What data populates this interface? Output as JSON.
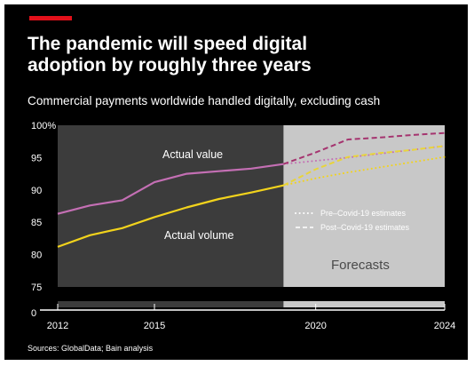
{
  "title_lines": [
    "The pandemic will speed digital",
    "adoption by roughly three years"
  ],
  "subtitle": "Commercial payments worldwide handled digitally, excluding cash",
  "source": "Sources: GlobalData; Bain analysis",
  "colors": {
    "accent": "#e3101a",
    "value": "#c46fb4",
    "value_post": "#a5346f",
    "volume": "#f2d31c",
    "volume_post": "#e8d43a",
    "historic_panel": "#3c3c3c",
    "forecast_panel": "#c8c8c8"
  },
  "chart_data": {
    "type": "line",
    "ylim": [
      75,
      100
    ],
    "yticks": [
      75,
      80,
      85,
      90,
      95,
      100
    ],
    "ytick_labels": [
      "75",
      "80",
      "85",
      "90",
      "95",
      "100%"
    ],
    "zero_label": "0",
    "xlim": [
      2012,
      2024
    ],
    "xticks": [
      2012,
      2015,
      2020,
      2024
    ],
    "xtick_labels": [
      "2012",
      "2015",
      "2020",
      "2024"
    ],
    "forecast_start": 2019,
    "forecast_label": "Forecasts",
    "grid": false,
    "legend_position": "right",
    "legend": [
      "Pre–Covid-19 estimates",
      "Post–Covid-19 estimates"
    ],
    "annotations": [
      "Actual value",
      "Actual volume"
    ],
    "series": [
      {
        "id": "actual-value",
        "name": "Actual value",
        "style": "solid",
        "color": "value",
        "x": [
          2012,
          2013,
          2014,
          2015,
          2016,
          2017,
          2018,
          2019
        ],
        "y": [
          86.3,
          87.6,
          88.4,
          91.2,
          92.5,
          92.9,
          93.3,
          94.0
        ]
      },
      {
        "id": "actual-volume",
        "name": "Actual volume",
        "style": "solid",
        "color": "volume",
        "x": [
          2012,
          2013,
          2014,
          2015,
          2016,
          2017,
          2018,
          2019
        ],
        "y": [
          81.2,
          83.0,
          84.1,
          85.8,
          87.3,
          88.6,
          89.6,
          90.7
        ]
      },
      {
        "id": "value-pre-covid",
        "name": "Pre–Covid-19 estimates",
        "style": "dotted",
        "color": "value",
        "x": [
          2019,
          2020,
          2021,
          2022,
          2023,
          2024
        ],
        "y": [
          94.0,
          94.5,
          95.0,
          95.6,
          96.2,
          96.8
        ]
      },
      {
        "id": "value-post-covid",
        "name": "Post–Covid-19 estimates",
        "style": "dashed",
        "color": "value_post",
        "x": [
          2019,
          2020,
          2021,
          2022,
          2023,
          2024
        ],
        "y": [
          94.0,
          95.8,
          97.8,
          98.1,
          98.5,
          98.8
        ]
      },
      {
        "id": "volume-pre-covid",
        "name": "Pre–Covid-19 estimates",
        "style": "dotted",
        "color": "volume",
        "x": [
          2019,
          2020,
          2021,
          2022,
          2023,
          2024
        ],
        "y": [
          90.7,
          91.8,
          92.7,
          93.5,
          94.3,
          95.1
        ]
      },
      {
        "id": "volume-post-covid",
        "name": "Post–Covid-19 estimates",
        "style": "dashed",
        "color": "volume_post",
        "x": [
          2019,
          2020,
          2021,
          2022,
          2023,
          2024
        ],
        "y": [
          90.7,
          93.2,
          95.1,
          95.7,
          96.2,
          96.8
        ]
      }
    ]
  }
}
